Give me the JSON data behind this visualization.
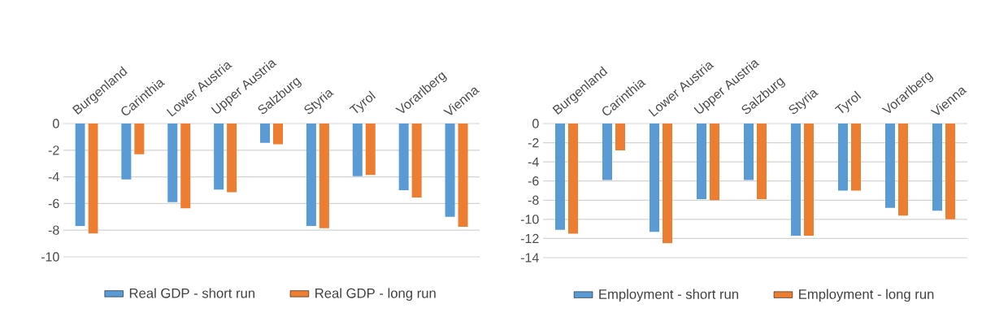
{
  "chart_data": [
    {
      "type": "bar",
      "categories": [
        "Burgenland",
        "Carinthia",
        "Lower Austria",
        "Upper Austria",
        "Salzburg",
        "Styria",
        "Tyrol",
        "Vorarlberg",
        "Vienna"
      ],
      "series": [
        {
          "name": "Real GDP - short run",
          "color": "#5b9bd5",
          "values": [
            -7.7,
            -4.2,
            -5.9,
            -4.95,
            -1.45,
            -7.7,
            -3.95,
            -5.0,
            -7.0
          ]
        },
        {
          "name": "Real GDP - long run",
          "color": "#ed7d31",
          "values": [
            -8.25,
            -2.3,
            -6.35,
            -5.15,
            -1.55,
            -7.85,
            -3.85,
            -5.55,
            -7.75
          ]
        }
      ],
      "ylim": [
        -10,
        0
      ],
      "yticks": [
        -10,
        -8,
        -6,
        -4,
        -2,
        0
      ],
      "grid": "y",
      "legend": "bottom"
    },
    {
      "type": "bar",
      "categories": [
        "Burgenland",
        "Carinthia",
        "Lower Austria",
        "Upper Austria",
        "Salzburg",
        "Styria",
        "Tyrol",
        "Vorarlberg",
        "Vienna"
      ],
      "series": [
        {
          "name": "Employment - short run",
          "color": "#5b9bd5",
          "values": [
            -11.1,
            -5.9,
            -11.3,
            -7.9,
            -5.9,
            -11.7,
            -7.0,
            -8.8,
            -9.1
          ]
        },
        {
          "name": "Employment - long run",
          "color": "#ed7d31",
          "values": [
            -11.5,
            -2.8,
            -12.5,
            -8.0,
            -7.9,
            -11.7,
            -7.0,
            -9.6,
            -10.0
          ]
        }
      ],
      "ylim": [
        -14,
        0
      ],
      "yticks": [
        -14,
        -12,
        -10,
        -8,
        -6,
        -4,
        -2,
        0
      ],
      "grid": "y",
      "legend": "bottom"
    }
  ]
}
